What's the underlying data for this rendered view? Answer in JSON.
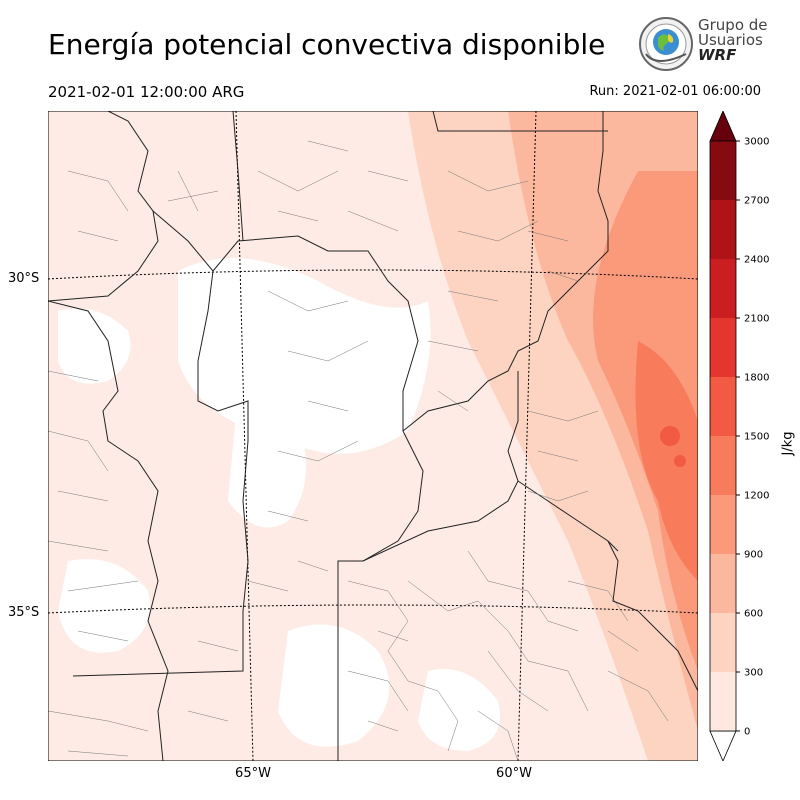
{
  "header": {
    "title": "Energía potencial convectiva disponible",
    "valid_time": "2021-02-01 12:00:00 ARG",
    "run_time": "Run: 2021-02-01 06:00:00"
  },
  "logo": {
    "line1": "Grupo de",
    "line2": "Usuarios",
    "line3": "WRF"
  },
  "map": {
    "lat_labels": [
      "30°S",
      "35°S"
    ],
    "lon_labels": [
      "65°W",
      "60°W"
    ]
  },
  "colorbar": {
    "unit": "J/kg",
    "ticks": [
      "0",
      "300",
      "600",
      "900",
      "1200",
      "1500",
      "1800",
      "2100",
      "2400",
      "2700",
      "3000"
    ],
    "colors": [
      "#fee8e0",
      "#fdd3c2",
      "#fcb89f",
      "#fb9a7a",
      "#f87c5c",
      "#f25a43",
      "#e3362f",
      "#cb1e21",
      "#ad1317",
      "#850a12"
    ],
    "over_color": "#67000d"
  }
}
